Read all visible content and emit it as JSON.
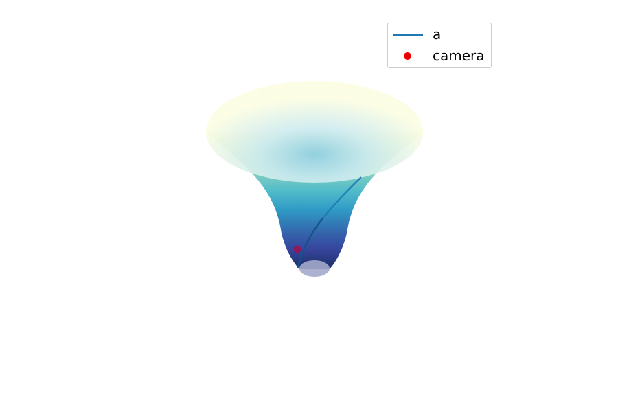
{
  "chart_data": {
    "type": "surface3d",
    "surface": {
      "shape": "funnel",
      "colormap": "YlGnBu",
      "colormap_stops": [
        "#fbfdd6",
        "#c7e9b4",
        "#7fcdbb",
        "#41b6c4",
        "#1d91c0",
        "#225ea8",
        "#253494",
        "#081d58"
      ]
    },
    "series": [
      {
        "name": "a",
        "type": "line",
        "color": "#1f77b4"
      },
      {
        "name": "camera",
        "type": "scatter",
        "color": "#ee0000"
      }
    ],
    "legend_position": "top-right",
    "axes_visible": false,
    "grid": false
  }
}
